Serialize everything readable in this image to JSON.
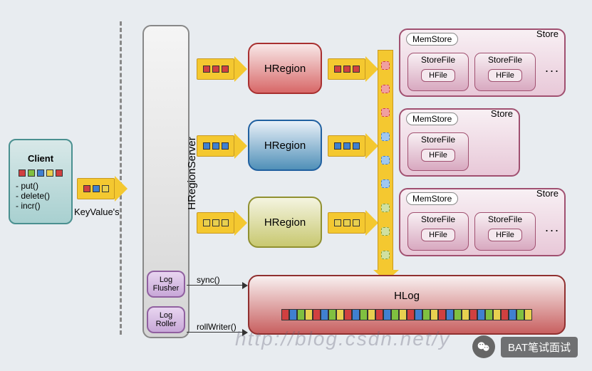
{
  "type": "diagram",
  "client": {
    "title": "Client",
    "methods": [
      "- put()",
      "- delete()",
      "- incr()"
    ],
    "square_colors": [
      "#d04040",
      "#80c040",
      "#4080d0",
      "#e8d050",
      "#d04040"
    ],
    "bg": "#a8d0d0",
    "border": "#4a9090"
  },
  "keyvalue_label": "KeyValue's",
  "dashed_line_color": "#888888",
  "hregionserver": {
    "label": "HRegionServer",
    "bg_top": "#f5f5f5",
    "bg_bot": "#d5d5d5",
    "border": "#888888"
  },
  "log_flusher": "Log\nFlusher",
  "log_roller": "Log\nRoller",
  "log_bg": "#c8a8d8",
  "log_border": "#9060a0",
  "sync_label": "sync()",
  "roll_label": "rollWriter()",
  "hregions": [
    {
      "label": "HRegion",
      "bg_top": "#f8e8e8",
      "bg_bot": "#d86868",
      "border": "#a83030",
      "arrow_squares": [
        "#d04040",
        "#d04040",
        "#d04040"
      ]
    },
    {
      "label": "HRegion",
      "bg_top": "#e8f0f8",
      "bg_bot": "#5090b8",
      "border": "#2060a0",
      "arrow_squares": [
        "#4080d0",
        "#4080d0",
        "#4080d0"
      ]
    },
    {
      "label": "HRegion",
      "bg_top": "#f4f4e0",
      "bg_bot": "#c8c870",
      "border": "#909030",
      "arrow_squares": [
        "#e8d050",
        "#e8d050",
        "#e8d050"
      ]
    }
  ],
  "arrow_color": "#f4c830",
  "arrow_border": "#c89820",
  "client_arrow_squares": [
    "#d04040",
    "#4080d0",
    "#e8d050"
  ],
  "stores": [
    {
      "label": "Store",
      "memstore": "MemStore",
      "storefiles": [
        {
          "label": "StoreFile",
          "hfile": "HFile"
        },
        {
          "label": "StoreFile",
          "hfile": "HFile"
        }
      ],
      "ellipsis": "..."
    },
    {
      "label": "Store",
      "memstore": "MemStore",
      "storefiles": [
        {
          "label": "StoreFile",
          "hfile": "HFile"
        }
      ]
    },
    {
      "label": "Store",
      "memstore": "MemStore",
      "storefiles": [
        {
          "label": "StoreFile",
          "hfile": "HFile"
        },
        {
          "label": "StoreFile",
          "hfile": "HFile"
        }
      ],
      "ellipsis": "..."
    }
  ],
  "store_bg_top": "#f8f0f4",
  "store_bg_bot": "#e8c8d8",
  "store_border": "#a05070",
  "hlog": {
    "title": "HLog",
    "bg_top": "#f8f0f0",
    "bg_bot": "#c86060",
    "border": "#903030",
    "squares": [
      "#d04040",
      "#4080d0",
      "#80c040",
      "#e8d050",
      "#d04040",
      "#4080d0",
      "#80c040",
      "#e8d050",
      "#d04040",
      "#4080d0",
      "#80c040",
      "#e8d050",
      "#d04040",
      "#4080d0",
      "#80c040",
      "#e8d050",
      "#d04040",
      "#4080d0",
      "#80c040",
      "#e8d050",
      "#d04040",
      "#4080d0",
      "#80c040",
      "#e8d050",
      "#d04040",
      "#4080d0",
      "#80c040",
      "#e8d050",
      "#d04040",
      "#4080d0",
      "#80c040",
      "#e8d050"
    ]
  },
  "vertical_blobs": [
    "r",
    "r",
    "r",
    "b",
    "b",
    "b",
    "g",
    "g",
    "g"
  ],
  "watermark_url": "http://blog.csdn.net/y",
  "watermark_badge": "BAT笔试面试"
}
